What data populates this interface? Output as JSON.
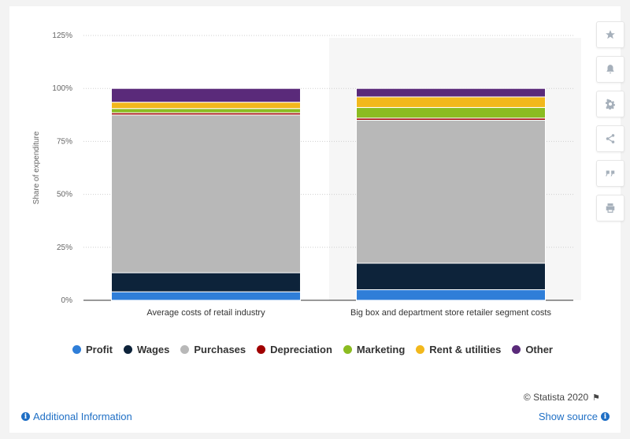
{
  "chart_data": {
    "type": "bar",
    "stacked": true,
    "categories": [
      "Average costs of retail industry",
      "Big box and department store retailer segment costs"
    ],
    "ylabel": "Share of expenditure",
    "xlabel": "",
    "ylim": [
      0,
      125
    ],
    "yticks": [
      "0%",
      "25%",
      "50%",
      "75%",
      "100%",
      "125%"
    ],
    "grid": true,
    "legend_position": "bottom",
    "series": [
      {
        "name": "Profit",
        "color": "#2f7ed8",
        "values": [
          4,
          5
        ]
      },
      {
        "name": "Wages",
        "color": "#0d233a",
        "values": [
          9,
          12.5
        ]
      },
      {
        "name": "Purchases",
        "color": "#b8b8b8",
        "values": [
          74.5,
          67.5
        ]
      },
      {
        "name": "Depreciation",
        "color": "#a00000",
        "values": [
          1,
          1
        ]
      },
      {
        "name": "Marketing",
        "color": "#8bbc21",
        "values": [
          2,
          5
        ]
      },
      {
        "name": "Rent & utilities",
        "color": "#f2b81c",
        "values": [
          3,
          5
        ]
      },
      {
        "name": "Other",
        "color": "#5a2a7a",
        "values": [
          6.5,
          4
        ]
      }
    ]
  },
  "legend": {
    "items": [
      "Profit",
      "Wages",
      "Purchases",
      "Depreciation",
      "Marketing",
      "Rent & utilities",
      "Other"
    ]
  },
  "toolbar": {
    "icons": [
      "star-icon",
      "bell-icon",
      "gear-icon",
      "share-icon",
      "quote-icon",
      "print-icon"
    ]
  },
  "footer": {
    "credit": "© Statista 2020",
    "additional_info": "Additional Information",
    "show_source": "Show source"
  }
}
